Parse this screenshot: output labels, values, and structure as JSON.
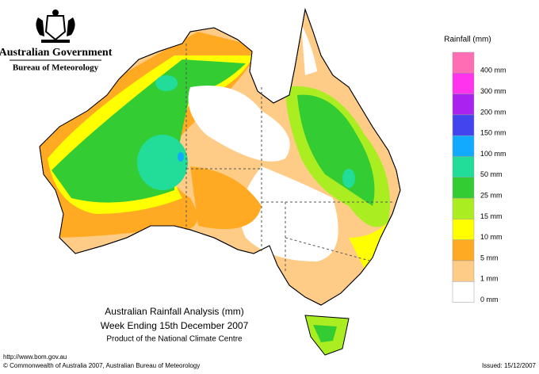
{
  "header": {
    "government": "Australian Government",
    "agency": "Bureau of Meteorology"
  },
  "map": {
    "title": "Australian Rainfall Analysis (mm)",
    "subtitle": "Week Ending 15th December 2007",
    "credit": "Product of the National Climate Centre"
  },
  "legend": {
    "title": "Rainfall (mm)",
    "items": [
      {
        "label": "400 mm",
        "color": "#ff6eb4"
      },
      {
        "label": "300 mm",
        "color": "#ff33ee"
      },
      {
        "label": "200 mm",
        "color": "#aa22ee"
      },
      {
        "label": "150 mm",
        "color": "#4444ee"
      },
      {
        "label": "100 mm",
        "color": "#11aaff"
      },
      {
        "label": "50 mm",
        "color": "#22dd99"
      },
      {
        "label": "25 mm",
        "color": "#33cc33"
      },
      {
        "label": "15 mm",
        "color": "#aaee22"
      },
      {
        "label": "10 mm",
        "color": "#ffff00"
      },
      {
        "label": "5 mm",
        "color": "#ffaa22"
      },
      {
        "label": "1 mm",
        "color": "#ffcc88"
      },
      {
        "label": "0 mm",
        "color": "#ffffff"
      }
    ]
  },
  "footer": {
    "url": "http://www.bom.gov.au",
    "copyright": "© Commonwealth of Australia 2007, Australian Bureau of Meteorology",
    "issued": "Issued: 15/12/2007"
  }
}
